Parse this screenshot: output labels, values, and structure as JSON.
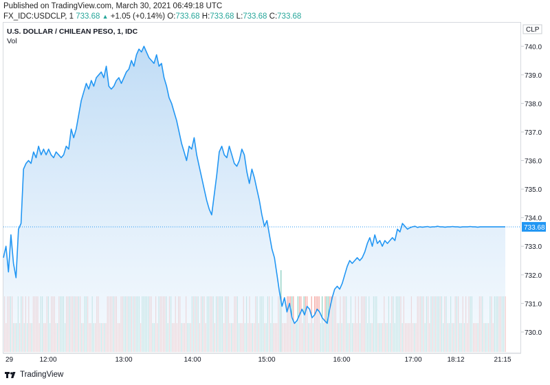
{
  "header": {
    "published": "Published on TradingView.com, March 30, 2021 06:49:18 UTC",
    "symbol": "FX_IDC:USDCLP, 1",
    "change": "+1.05 (+0.14%)",
    "o_label": "O:",
    "o_value": "733.68",
    "h_label": "H:",
    "h_value": "733.68",
    "l_label": "L:",
    "l_value": "733.68",
    "c_label": "C:",
    "c_value": "733.68",
    "last": "733.68"
  },
  "chart_title": "U.S. DOLLAR / CHILEAN PESO, 1, IDC",
  "vol_label": "Vol",
  "footer": {
    "brand": "TradingView"
  },
  "colors": {
    "line": "#2196f3",
    "area_top": "#bfdcf6",
    "vol_up": "#8fd1c4",
    "vol_down": "#f4a6a1",
    "price_tag": "#2196f3"
  },
  "chart_data": {
    "type": "area",
    "title": "U.S. DOLLAR / CHILEAN PESO, 1, IDC",
    "currency_label": "CLP",
    "last_price": 733.68,
    "ylim": [
      729.3,
      740.8
    ],
    "y_ticks": [
      730.0,
      731.0,
      732.0,
      733.0,
      734.0,
      735.0,
      736.0,
      737.0,
      738.0,
      739.0,
      740.0
    ],
    "x_ticks": [
      "29",
      "12:00",
      "13:00",
      "14:00",
      "15:00",
      "16:00",
      "17:00",
      "18:12",
      "21:15"
    ],
    "grid": false,
    "series": [
      {
        "x": [
          0,
          2,
          4,
          6,
          8,
          10,
          12,
          14,
          16,
          18,
          20,
          22,
          24,
          26,
          28,
          30,
          32,
          34,
          36,
          38,
          40,
          42,
          44,
          46,
          48,
          50,
          52,
          54,
          56,
          58,
          60,
          62,
          64,
          66,
          68,
          70,
          72,
          74,
          76,
          78,
          80,
          82,
          84,
          86,
          88,
          90,
          92,
          94,
          96,
          98,
          100,
          102,
          104,
          106,
          108,
          110,
          112,
          114,
          116,
          118,
          120,
          122,
          124,
          126,
          128,
          130,
          132,
          134,
          136,
          138,
          140,
          142,
          144,
          146,
          148,
          150,
          152,
          154,
          156,
          158,
          160,
          162,
          164,
          166,
          168,
          170,
          172,
          174,
          176,
          178,
          180,
          182,
          184,
          186,
          188,
          190,
          192,
          194,
          196,
          198,
          200,
          202,
          204,
          206,
          208,
          210,
          212,
          214,
          216,
          218,
          220,
          222,
          224,
          226,
          228,
          230,
          232,
          234,
          236,
          238,
          240,
          242,
          244,
          246,
          248,
          250,
          252,
          254,
          256,
          258,
          260,
          262,
          264,
          266,
          268,
          270,
          272,
          274,
          276,
          278,
          280,
          282,
          284,
          286,
          288,
          290,
          292,
          294,
          296,
          298,
          300,
          302,
          304,
          306,
          308,
          310,
          312,
          314,
          316,
          318,
          320,
          322,
          324,
          326,
          328,
          330,
          332,
          334,
          336,
          338,
          340,
          342,
          344,
          346,
          348,
          350,
          352,
          354,
          356,
          358,
          360,
          362,
          364,
          366,
          368,
          370,
          372,
          374,
          376,
          378,
          380,
          382,
          384,
          386,
          388,
          390,
          392,
          394,
          396,
          398,
          400
        ],
        "y": [
          732.6,
          733.0,
          732.1,
          733.4,
          732.4,
          731.9,
          733.6,
          733.8,
          735.7,
          735.9,
          736.0,
          735.9,
          736.3,
          736.1,
          736.5,
          736.2,
          736.4,
          736.2,
          736.4,
          736.2,
          736.1,
          736.3,
          736.2,
          736.1,
          736.2,
          736.5,
          736.4,
          737.1,
          736.8,
          737.1,
          737.6,
          738.1,
          738.4,
          738.7,
          738.5,
          738.8,
          738.6,
          738.9,
          739.0,
          739.1,
          738.9,
          739.3,
          738.6,
          738.5,
          738.6,
          738.8,
          738.9,
          738.7,
          738.9,
          739.1,
          739.2,
          739.5,
          739.3,
          739.7,
          739.9,
          739.8,
          740.0,
          739.8,
          739.6,
          739.5,
          739.4,
          739.7,
          739.3,
          739.4,
          738.9,
          738.6,
          738.2,
          738.0,
          737.7,
          737.4,
          737.0,
          736.6,
          736.3,
          736.0,
          736.5,
          736.4,
          736.8,
          736.2,
          735.8,
          735.4,
          735.0,
          734.6,
          734.3,
          734.1,
          734.8,
          735.5,
          736.3,
          736.5,
          736.2,
          736.1,
          736.5,
          736.2,
          735.9,
          735.8,
          736.0,
          736.4,
          736.2,
          735.6,
          735.2,
          735.7,
          735.4,
          735.0,
          734.6,
          734.1,
          733.7,
          733.9,
          733.4,
          732.9,
          732.6,
          732.0,
          731.4,
          730.9,
          731.2,
          730.7,
          731.0,
          730.5,
          730.3,
          730.4,
          730.6,
          730.8,
          730.6,
          730.9,
          730.8,
          730.5,
          730.6,
          730.8,
          730.7,
          730.5,
          730.4,
          730.3,
          730.8,
          731.2,
          731.5,
          731.6,
          731.5,
          731.7,
          732.0,
          732.3,
          732.5,
          732.4,
          732.5,
          732.6,
          732.5,
          732.6,
          732.8,
          733.1,
          733.3,
          733.0,
          733.4,
          733.1,
          733.2,
          733.0,
          733.2,
          733.1,
          733.2,
          733.3,
          733.2,
          733.6,
          733.5,
          733.8,
          733.7,
          733.6,
          733.65,
          733.68,
          733.7,
          733.66,
          733.68,
          733.67,
          733.68,
          733.69,
          733.67,
          733.68,
          733.68,
          733.7,
          733.68,
          733.68,
          733.67,
          733.68,
          733.68,
          733.69,
          733.68,
          733.68,
          733.67,
          733.68,
          733.68,
          733.68,
          733.69,
          733.68,
          733.68,
          733.67,
          733.68,
          733.68,
          733.68,
          733.68,
          733.68,
          733.68,
          733.68,
          733.68,
          733.68,
          733.68,
          733.68
        ]
      }
    ]
  }
}
